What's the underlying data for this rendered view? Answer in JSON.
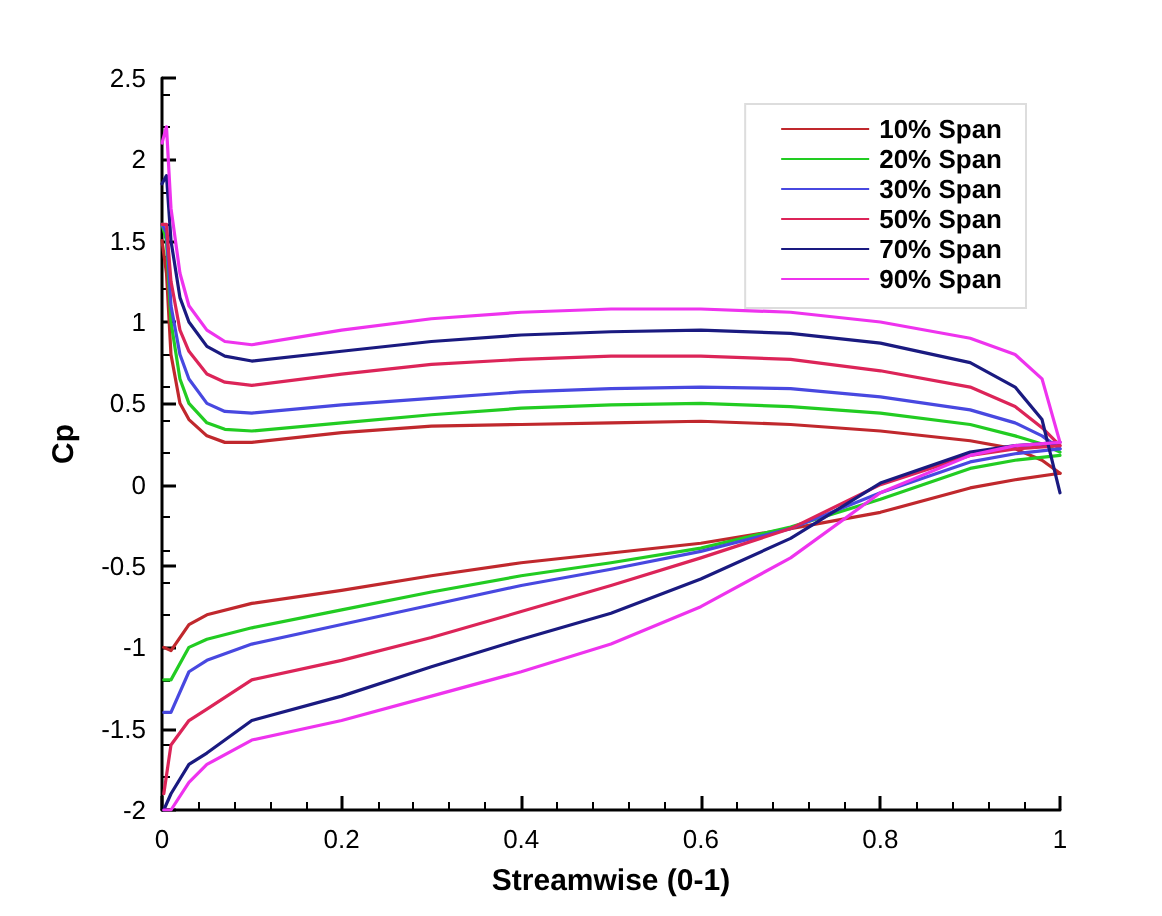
{
  "chart_data": {
    "type": "line",
    "xlabel": "Streamwise (0-1)",
    "ylabel": "Cp",
    "series": [
      {
        "name": "10% Span",
        "color": "#c0282d",
        "x": [
          0,
          0.005,
          0.01,
          0.02,
          0.03,
          0.05,
          0.07,
          0.1,
          0.2,
          0.3,
          0.4,
          0.5,
          0.6,
          0.7,
          0.8,
          0.9,
          0.95,
          0.98,
          1
        ],
        "values": [
          1.5,
          1.3,
          0.8,
          0.5,
          0.4,
          0.3,
          0.26,
          0.26,
          0.32,
          0.36,
          0.37,
          0.38,
          0.39,
          0.37,
          0.33,
          0.27,
          0.22,
          0.15,
          0.07
        ]
      },
      {
        "color": "#c0282d",
        "x": [
          0.002,
          0.01,
          0.03,
          0.05,
          0.1,
          0.2,
          0.3,
          0.4,
          0.5,
          0.6,
          0.7,
          0.8,
          0.9,
          0.95,
          1
        ],
        "values": [
          -1.0,
          -1.02,
          -0.86,
          -0.8,
          -0.73,
          -0.65,
          -0.56,
          -0.48,
          -0.42,
          -0.36,
          -0.27,
          -0.17,
          -0.02,
          0.03,
          0.07
        ]
      },
      {
        "name": "20% Span",
        "color": "#22cc22",
        "x": [
          0,
          0.005,
          0.01,
          0.02,
          0.03,
          0.05,
          0.07,
          0.1,
          0.2,
          0.3,
          0.4,
          0.5,
          0.6,
          0.7,
          0.8,
          0.9,
          0.95,
          0.98,
          1
        ],
        "values": [
          1.6,
          1.5,
          1.0,
          0.65,
          0.5,
          0.38,
          0.34,
          0.33,
          0.38,
          0.43,
          0.47,
          0.49,
          0.5,
          0.48,
          0.44,
          0.37,
          0.3,
          0.25,
          0.2
        ]
      },
      {
        "color": "#22cc22",
        "x": [
          0.002,
          0.01,
          0.03,
          0.05,
          0.1,
          0.2,
          0.3,
          0.4,
          0.5,
          0.6,
          0.7,
          0.8,
          0.9,
          0.95,
          1
        ],
        "values": [
          -1.2,
          -1.2,
          -1.0,
          -0.95,
          -0.88,
          -0.77,
          -0.66,
          -0.56,
          -0.48,
          -0.39,
          -0.26,
          -0.09,
          0.1,
          0.15,
          0.18
        ]
      },
      {
        "name": "30% Span",
        "color": "#4848e0",
        "x": [
          0,
          0.005,
          0.01,
          0.02,
          0.03,
          0.05,
          0.07,
          0.1,
          0.2,
          0.3,
          0.4,
          0.5,
          0.6,
          0.7,
          0.8,
          0.9,
          0.95,
          0.98,
          1
        ],
        "values": [
          1.6,
          1.55,
          1.1,
          0.8,
          0.65,
          0.5,
          0.45,
          0.44,
          0.49,
          0.53,
          0.57,
          0.59,
          0.6,
          0.59,
          0.54,
          0.46,
          0.38,
          0.3,
          0.22
        ]
      },
      {
        "color": "#4848e0",
        "x": [
          0.002,
          0.01,
          0.03,
          0.05,
          0.1,
          0.2,
          0.3,
          0.4,
          0.5,
          0.6,
          0.7,
          0.8,
          0.9,
          0.95,
          1
        ],
        "values": [
          -1.4,
          -1.4,
          -1.15,
          -1.08,
          -0.98,
          -0.86,
          -0.74,
          -0.62,
          -0.52,
          -0.41,
          -0.27,
          -0.05,
          0.14,
          0.19,
          0.22
        ]
      },
      {
        "name": "50% Span",
        "color": "#dc2458",
        "x": [
          0,
          0.005,
          0.01,
          0.02,
          0.03,
          0.05,
          0.07,
          0.1,
          0.2,
          0.3,
          0.4,
          0.5,
          0.6,
          0.7,
          0.8,
          0.9,
          0.95,
          0.98,
          1
        ],
        "values": [
          1.6,
          1.6,
          1.25,
          0.95,
          0.82,
          0.68,
          0.63,
          0.61,
          0.68,
          0.74,
          0.77,
          0.79,
          0.79,
          0.77,
          0.7,
          0.6,
          0.48,
          0.35,
          0.24
        ]
      },
      {
        "color": "#dc2458",
        "x": [
          0.002,
          0.01,
          0.03,
          0.05,
          0.1,
          0.2,
          0.3,
          0.4,
          0.5,
          0.6,
          0.7,
          0.8,
          0.9,
          0.95,
          1
        ],
        "values": [
          -1.9,
          -1.6,
          -1.45,
          -1.38,
          -1.2,
          -1.08,
          -0.94,
          -0.78,
          -0.62,
          -0.45,
          -0.27,
          0.0,
          0.18,
          0.22,
          0.24
        ]
      },
      {
        "name": "70% Span",
        "color": "#1a1a80",
        "x": [
          0,
          0.005,
          0.01,
          0.02,
          0.03,
          0.05,
          0.07,
          0.1,
          0.2,
          0.3,
          0.4,
          0.5,
          0.6,
          0.7,
          0.8,
          0.9,
          0.95,
          0.98,
          1
        ],
        "values": [
          1.85,
          1.9,
          1.5,
          1.15,
          1.0,
          0.85,
          0.79,
          0.76,
          0.82,
          0.88,
          0.92,
          0.94,
          0.95,
          0.93,
          0.87,
          0.75,
          0.6,
          0.4,
          -0.05
        ]
      },
      {
        "color": "#1a1a80",
        "x": [
          0.002,
          0.01,
          0.03,
          0.05,
          0.1,
          0.2,
          0.3,
          0.4,
          0.5,
          0.6,
          0.7,
          0.8,
          0.9,
          0.95,
          1
        ],
        "values": [
          -2.0,
          -1.9,
          -1.72,
          -1.65,
          -1.45,
          -1.3,
          -1.12,
          -0.95,
          -0.79,
          -0.58,
          -0.33,
          0.01,
          0.2,
          0.24,
          0.26
        ]
      },
      {
        "name": "90% Span",
        "color": "#ee33ee",
        "x": [
          0,
          0.005,
          0.01,
          0.02,
          0.03,
          0.05,
          0.07,
          0.1,
          0.2,
          0.3,
          0.4,
          0.5,
          0.6,
          0.7,
          0.8,
          0.9,
          0.95,
          0.98,
          1
        ],
        "values": [
          2.1,
          2.2,
          1.7,
          1.3,
          1.1,
          0.95,
          0.88,
          0.86,
          0.95,
          1.02,
          1.06,
          1.08,
          1.08,
          1.06,
          1.0,
          0.9,
          0.8,
          0.65,
          0.26
        ]
      },
      {
        "color": "#ee33ee",
        "x": [
          0.002,
          0.01,
          0.03,
          0.05,
          0.1,
          0.2,
          0.3,
          0.4,
          0.5,
          0.6,
          0.7,
          0.8,
          0.9,
          0.95,
          1
        ],
        "values": [
          -2.0,
          -2.0,
          -1.83,
          -1.72,
          -1.57,
          -1.45,
          -1.3,
          -1.15,
          -0.98,
          -0.75,
          -0.45,
          -0.05,
          0.18,
          0.24,
          0.26
        ]
      }
    ],
    "xlim": [
      0,
      1
    ],
    "xticks": [
      0,
      0.2,
      0.4,
      0.6,
      0.8,
      1
    ],
    "ylim": [
      -2,
      2.5
    ],
    "yticks": [
      -2,
      -1.5,
      -1,
      -0.5,
      0,
      0.5,
      1,
      1.5,
      2,
      2.5
    ],
    "grid": false,
    "legend": "top right",
    "marker": "none",
    "line_style": "solid"
  }
}
